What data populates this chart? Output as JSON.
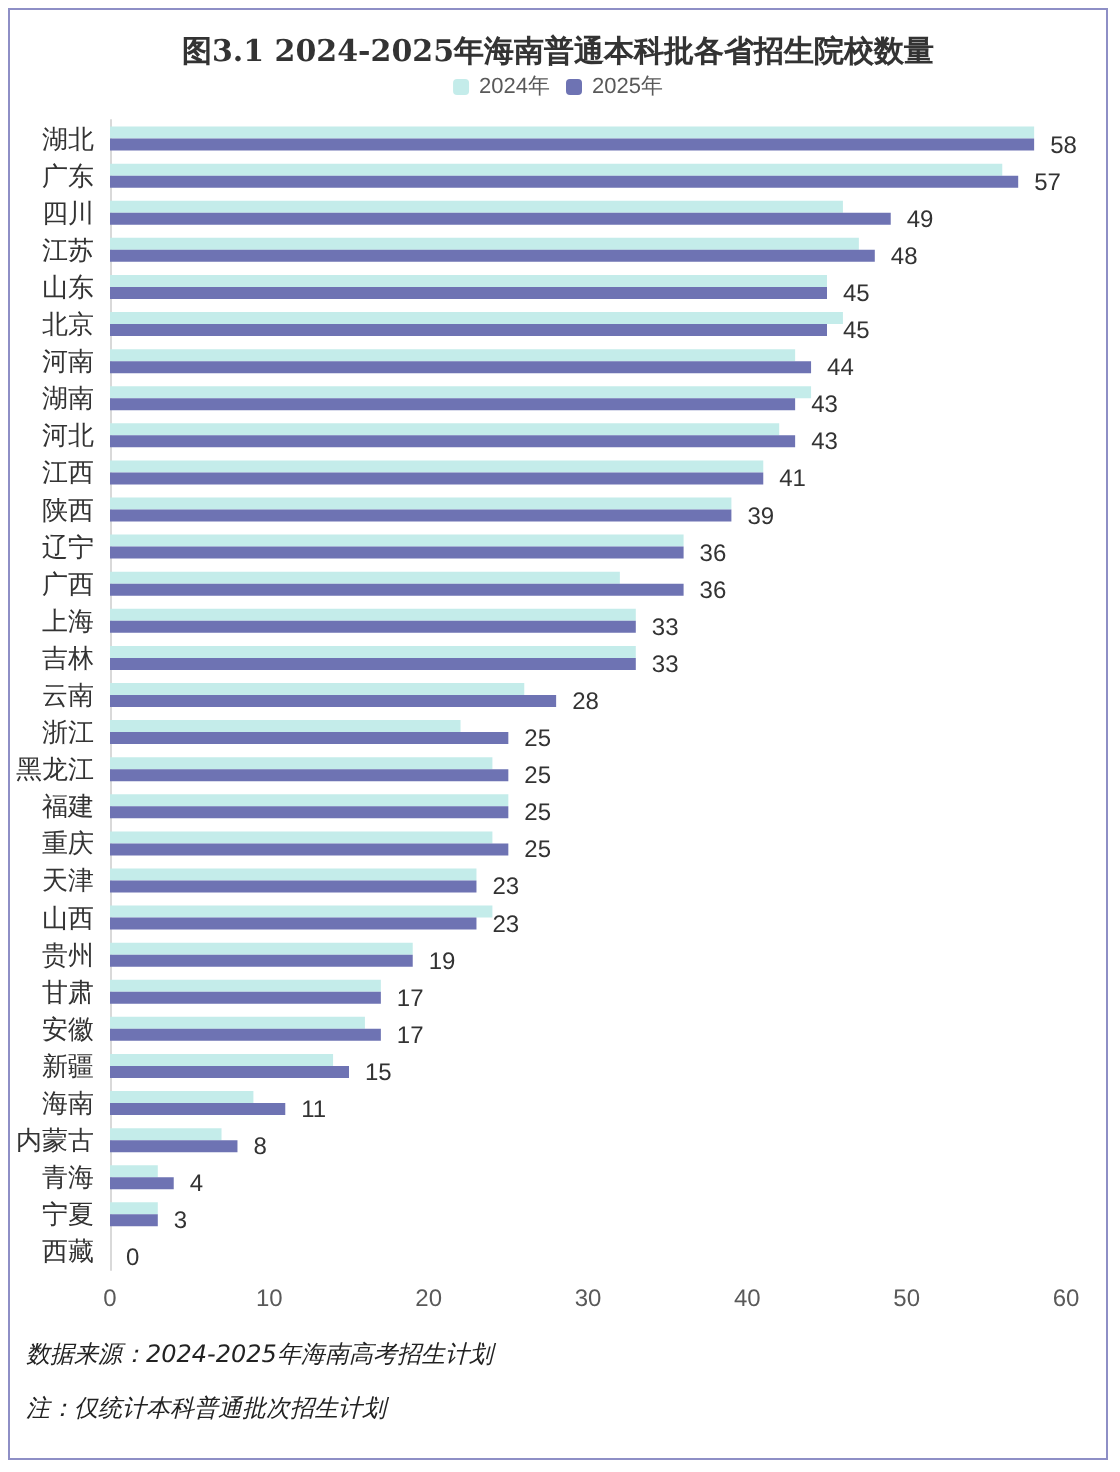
{
  "chart_data": {
    "type": "bar",
    "orientation": "horizontal",
    "title": "图3.1 2024-2025年海南普通本科批各省招生院校数量",
    "categories": [
      "湖北",
      "广东",
      "四川",
      "江苏",
      "山东",
      "北京",
      "河南",
      "湖南",
      "河北",
      "江西",
      "陕西",
      "辽宁",
      "广西",
      "上海",
      "吉林",
      "云南",
      "浙江",
      "黑龙江",
      "福建",
      "重庆",
      "天津",
      "山西",
      "贵州",
      "甘肃",
      "安徽",
      "新疆",
      "海南",
      "内蒙古",
      "青海",
      "宁夏",
      "西藏"
    ],
    "series": [
      {
        "name": "2024年",
        "color": "#c4ecea",
        "values": [
          58,
          56,
          46,
          47,
          45,
          46,
          43,
          44,
          42,
          41,
          39,
          36,
          32,
          33,
          33,
          26,
          22,
          24,
          25,
          24,
          23,
          24,
          19,
          17,
          16,
          14,
          9,
          7,
          3,
          3,
          0
        ]
      },
      {
        "name": "2025年",
        "color": "#6e73b3",
        "values": [
          58,
          57,
          49,
          48,
          45,
          45,
          44,
          43,
          43,
          41,
          39,
          36,
          36,
          33,
          33,
          28,
          25,
          25,
          25,
          25,
          23,
          23,
          19,
          17,
          17,
          15,
          11,
          8,
          4,
          3,
          0
        ],
        "value_labels": [
          "58",
          "57",
          "49",
          "48",
          "45",
          "45",
          "44",
          "43",
          "43",
          "41",
          "39",
          "36",
          "36",
          "33",
          "33",
          "28",
          "25",
          "25",
          "25",
          "25",
          "23",
          "23",
          "19",
          "17",
          "17",
          "15",
          "11",
          "8",
          "4",
          "3",
          "0"
        ]
      }
    ],
    "xlim": [
      0,
      60
    ],
    "xticks": [
      0,
      10,
      20,
      30,
      40,
      50,
      60
    ],
    "grid": false,
    "legend": "top",
    "annotations": [
      "数据来源：2024-2025年海南高考招生计划",
      "注：仅统计本科普通批次招生计划"
    ]
  }
}
